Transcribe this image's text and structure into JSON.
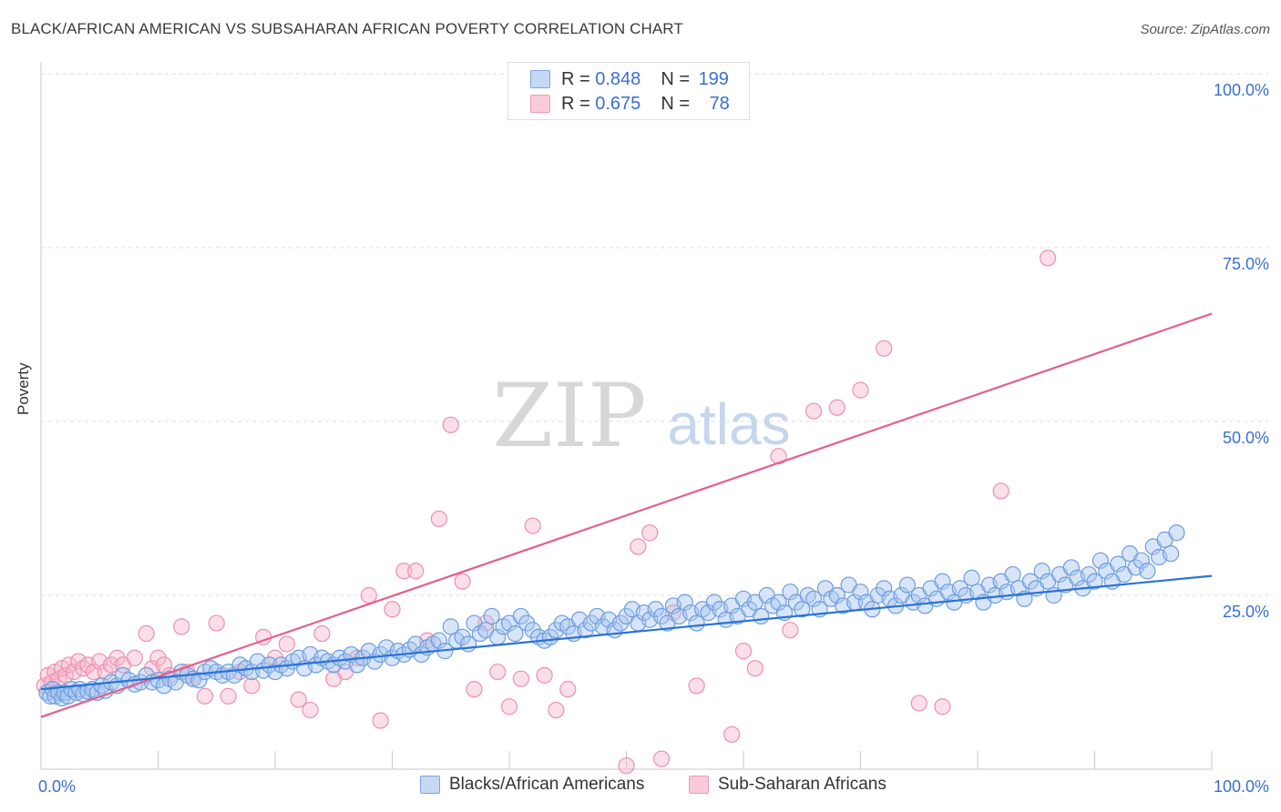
{
  "title": "BLACK/AFRICAN AMERICAN VS SUBSAHARAN AFRICAN POVERTY CORRELATION CHART",
  "source": "Source: ZipAtlas.com",
  "watermark": {
    "zip": "ZIP",
    "atlas": "atlas"
  },
  "legend_top": {
    "rows": [
      {
        "r_label": "R = ",
        "r": "0.848",
        "n_label": "N = ",
        "n": "199"
      },
      {
        "r_label": "R = ",
        "r": "0.675",
        "n_label": "N = ",
        "n": "78"
      }
    ]
  },
  "colors": {
    "blue_fill": "#a9c6f0",
    "blue_stroke": "#6d9de0",
    "blue_line": "#2b72d6",
    "pink_fill": "#f6b8cb",
    "pink_stroke": "#ec8fae",
    "pink_line": "#e45f8d",
    "tick_label": "#3a6fd0",
    "grid": "#dcdcdc"
  },
  "chart_data": {
    "type": "scatter",
    "title": "BLACK/AFRICAN AMERICAN VS SUBSAHARAN AFRICAN POVERTY CORRELATION CHART",
    "xlabel": "",
    "ylabel": "Poverty",
    "xlim": [
      0,
      100
    ],
    "ylim": [
      0,
      100
    ],
    "x_tick_labels": [
      "0.0%",
      "100.0%"
    ],
    "y_tick_values": [
      25,
      50,
      75,
      100
    ],
    "y_tick_labels": [
      "25.0%",
      "50.0%",
      "75.0%",
      "100.0%"
    ],
    "grid": true,
    "legend_position": "bottom",
    "series": [
      {
        "name": "Blacks/African Americans",
        "R": 0.848,
        "N": 199,
        "trend": {
          "x": [
            0,
            100
          ],
          "y": [
            11.5,
            27.8
          ]
        },
        "points": [
          [
            0.5,
            11
          ],
          [
            0.8,
            10.5
          ],
          [
            1,
            11.5
          ],
          [
            1.2,
            10.5
          ],
          [
            1.5,
            11
          ],
          [
            1.8,
            10.2
          ],
          [
            2,
            11
          ],
          [
            2.3,
            10.5
          ],
          [
            2.6,
            11.5
          ],
          [
            3,
            11
          ],
          [
            3.3,
            11.5
          ],
          [
            3.6,
            10.8
          ],
          [
            4,
            11.2
          ],
          [
            4.4,
            11.5
          ],
          [
            4.8,
            11
          ],
          [
            5.2,
            12
          ],
          [
            5.5,
            11.3
          ],
          [
            6,
            12.5
          ],
          [
            6.5,
            12
          ],
          [
            7,
            13.5
          ],
          [
            7.5,
            12.8
          ],
          [
            8,
            12.2
          ],
          [
            8.5,
            12.5
          ],
          [
            9,
            13.5
          ],
          [
            9.5,
            12.5
          ],
          [
            10,
            12.8
          ],
          [
            10.5,
            12
          ],
          [
            11,
            13
          ],
          [
            11.5,
            12.5
          ],
          [
            12,
            14
          ],
          [
            12.5,
            13.5
          ],
          [
            13,
            13
          ],
          [
            13.5,
            12.8
          ],
          [
            14,
            14
          ],
          [
            14.5,
            14.5
          ],
          [
            15,
            14
          ],
          [
            15.5,
            13.5
          ],
          [
            16,
            14
          ],
          [
            16.5,
            13.5
          ],
          [
            17,
            15
          ],
          [
            17.5,
            14.5
          ],
          [
            18,
            14
          ],
          [
            18.5,
            15.5
          ],
          [
            19,
            14.2
          ],
          [
            19.5,
            15
          ],
          [
            20,
            14
          ],
          [
            20.5,
            15
          ],
          [
            21,
            14.5
          ],
          [
            21.5,
            15.5
          ],
          [
            22,
            16
          ],
          [
            22.5,
            14.5
          ],
          [
            23,
            16.5
          ],
          [
            23.5,
            15
          ],
          [
            24,
            16
          ],
          [
            24.5,
            15.5
          ],
          [
            25,
            15
          ],
          [
            25.5,
            16
          ],
          [
            26,
            15.5
          ],
          [
            26.5,
            16.5
          ],
          [
            27,
            15
          ],
          [
            27.5,
            16
          ],
          [
            28,
            17
          ],
          [
            28.5,
            15.5
          ],
          [
            29,
            16.5
          ],
          [
            29.5,
            17.5
          ],
          [
            30,
            16
          ],
          [
            30.5,
            17
          ],
          [
            31,
            16.5
          ],
          [
            31.5,
            17.2
          ],
          [
            32,
            18
          ],
          [
            32.5,
            16.5
          ],
          [
            33,
            17.5
          ],
          [
            33.5,
            18
          ],
          [
            34,
            18.5
          ],
          [
            34.5,
            17
          ],
          [
            35,
            20.5
          ],
          [
            35.5,
            18.5
          ],
          [
            36,
            19
          ],
          [
            36.5,
            18
          ],
          [
            37,
            21
          ],
          [
            37.5,
            19.5
          ],
          [
            38,
            20
          ],
          [
            38.5,
            22
          ],
          [
            39,
            19
          ],
          [
            39.5,
            20.5
          ],
          [
            40,
            21
          ],
          [
            40.5,
            19.5
          ],
          [
            41,
            22
          ],
          [
            41.5,
            21
          ],
          [
            42,
            20
          ],
          [
            42.5,
            19
          ],
          [
            43,
            18.5
          ],
          [
            43.5,
            19
          ],
          [
            44,
            20
          ],
          [
            44.5,
            21
          ],
          [
            45,
            20.5
          ],
          [
            45.5,
            19.5
          ],
          [
            46,
            21.5
          ],
          [
            46.5,
            20
          ],
          [
            47,
            21
          ],
          [
            47.5,
            22
          ],
          [
            48,
            20.5
          ],
          [
            48.5,
            21.5
          ],
          [
            49,
            20
          ],
          [
            49.5,
            21
          ],
          [
            50,
            22
          ],
          [
            50.5,
            23
          ],
          [
            51,
            21
          ],
          [
            51.5,
            22.5
          ],
          [
            52,
            21.5
          ],
          [
            52.5,
            23
          ],
          [
            53,
            22
          ],
          [
            53.5,
            21
          ],
          [
            54,
            23.5
          ],
          [
            54.5,
            22
          ],
          [
            55,
            24
          ],
          [
            55.5,
            22.5
          ],
          [
            56,
            21
          ],
          [
            56.5,
            23
          ],
          [
            57,
            22.5
          ],
          [
            57.5,
            24
          ],
          [
            58,
            23
          ],
          [
            58.5,
            21.5
          ],
          [
            59,
            23.5
          ],
          [
            59.5,
            22
          ],
          [
            60,
            24.5
          ],
          [
            60.5,
            23
          ],
          [
            61,
            24
          ],
          [
            61.5,
            22
          ],
          [
            62,
            25
          ],
          [
            62.5,
            23.5
          ],
          [
            63,
            24
          ],
          [
            63.5,
            22.5
          ],
          [
            64,
            25.5
          ],
          [
            64.5,
            24
          ],
          [
            65,
            23
          ],
          [
            65.5,
            25
          ],
          [
            66,
            24.5
          ],
          [
            66.5,
            23
          ],
          [
            67,
            26
          ],
          [
            67.5,
            24.5
          ],
          [
            68,
            25
          ],
          [
            68.5,
            23.5
          ],
          [
            69,
            26.5
          ],
          [
            69.5,
            24
          ],
          [
            70,
            25.5
          ],
          [
            70.5,
            24
          ],
          [
            71,
            23
          ],
          [
            71.5,
            25
          ],
          [
            72,
            26
          ],
          [
            72.5,
            24.5
          ],
          [
            73,
            23.5
          ],
          [
            73.5,
            25
          ],
          [
            74,
            26.5
          ],
          [
            74.5,
            24
          ],
          [
            75,
            25
          ],
          [
            75.5,
            23.5
          ],
          [
            76,
            26
          ],
          [
            76.5,
            24.5
          ],
          [
            77,
            27
          ],
          [
            77.5,
            25.5
          ],
          [
            78,
            24
          ],
          [
            78.5,
            26
          ],
          [
            79,
            25
          ],
          [
            79.5,
            27.5
          ],
          [
            80,
            25.5
          ],
          [
            80.5,
            24
          ],
          [
            81,
            26.5
          ],
          [
            81.5,
            25
          ],
          [
            82,
            27
          ],
          [
            82.5,
            25.5
          ],
          [
            83,
            28
          ],
          [
            83.5,
            26
          ],
          [
            84,
            24.5
          ],
          [
            84.5,
            27
          ],
          [
            85,
            26
          ],
          [
            85.5,
            28.5
          ],
          [
            86,
            27
          ],
          [
            86.5,
            25
          ],
          [
            87,
            28
          ],
          [
            87.5,
            26.5
          ],
          [
            88,
            29
          ],
          [
            88.5,
            27.5
          ],
          [
            89,
            26
          ],
          [
            89.5,
            28
          ],
          [
            90,
            27
          ],
          [
            90.5,
            30
          ],
          [
            91,
            28.5
          ],
          [
            91.5,
            27
          ],
          [
            92,
            29.5
          ],
          [
            92.5,
            28
          ],
          [
            93,
            31
          ],
          [
            93.5,
            29
          ],
          [
            94,
            30
          ],
          [
            94.5,
            28.5
          ],
          [
            95,
            32
          ],
          [
            95.5,
            30.5
          ],
          [
            96,
            33
          ],
          [
            96.5,
            31
          ],
          [
            97,
            34
          ]
        ]
      },
      {
        "name": "Sub-Saharan Africans",
        "R": 0.675,
        "N": 78,
        "trend": {
          "x": [
            0,
            100
          ],
          "y": [
            7.5,
            65.5
          ]
        },
        "points": [
          [
            0.3,
            12
          ],
          [
            0.6,
            13.5
          ],
          [
            0.9,
            12.5
          ],
          [
            1.2,
            14
          ],
          [
            1.5,
            13
          ],
          [
            1.8,
            14.5
          ],
          [
            2.1,
            13.5
          ],
          [
            2.4,
            15
          ],
          [
            2.8,
            14
          ],
          [
            3.2,
            15.5
          ],
          [
            3.6,
            14.5
          ],
          [
            4,
            15
          ],
          [
            4.5,
            14
          ],
          [
            5,
            15.5
          ],
          [
            5.5,
            14
          ],
          [
            6,
            15
          ],
          [
            6.5,
            16
          ],
          [
            7,
            15
          ],
          [
            8,
            16
          ],
          [
            9,
            19.5
          ],
          [
            9.5,
            14.5
          ],
          [
            10,
            16
          ],
          [
            10.5,
            15
          ],
          [
            11,
            13.5
          ],
          [
            12,
            20.5
          ],
          [
            12.5,
            14
          ],
          [
            13,
            13
          ],
          [
            14,
            10.5
          ],
          [
            15,
            21
          ],
          [
            16,
            10.5
          ],
          [
            17,
            14
          ],
          [
            18,
            12
          ],
          [
            19,
            19
          ],
          [
            20,
            16
          ],
          [
            21,
            18
          ],
          [
            22,
            10
          ],
          [
            23,
            8.5
          ],
          [
            24,
            19.5
          ],
          [
            25,
            13
          ],
          [
            26,
            14
          ],
          [
            27,
            16
          ],
          [
            28,
            25
          ],
          [
            29,
            7
          ],
          [
            30,
            23
          ],
          [
            31,
            28.5
          ],
          [
            32,
            28.5
          ],
          [
            33,
            18.5
          ],
          [
            34,
            36
          ],
          [
            35,
            49.5
          ],
          [
            36,
            27
          ],
          [
            37,
            11.5
          ],
          [
            38,
            21
          ],
          [
            39,
            14
          ],
          [
            40,
            9
          ],
          [
            41,
            13
          ],
          [
            42,
            35
          ],
          [
            43,
            13.5
          ],
          [
            44,
            8.5
          ],
          [
            45,
            11.5
          ],
          [
            50,
            0.5
          ],
          [
            51,
            32
          ],
          [
            52,
            34
          ],
          [
            53,
            1.5
          ],
          [
            54,
            22.5
          ],
          [
            56,
            12
          ],
          [
            59,
            5
          ],
          [
            60,
            17
          ],
          [
            61,
            14.5
          ],
          [
            63,
            45
          ],
          [
            64,
            20
          ],
          [
            66,
            51.5
          ],
          [
            68,
            52
          ],
          [
            70,
            54.5
          ],
          [
            72,
            60.5
          ],
          [
            75,
            9.5
          ],
          [
            77,
            9
          ],
          [
            82,
            40
          ],
          [
            86,
            73.5
          ]
        ]
      }
    ]
  },
  "bottom_legend": {
    "items": [
      {
        "label": "Blacks/African Americans"
      },
      {
        "label": "Sub-Saharan Africans"
      }
    ]
  }
}
